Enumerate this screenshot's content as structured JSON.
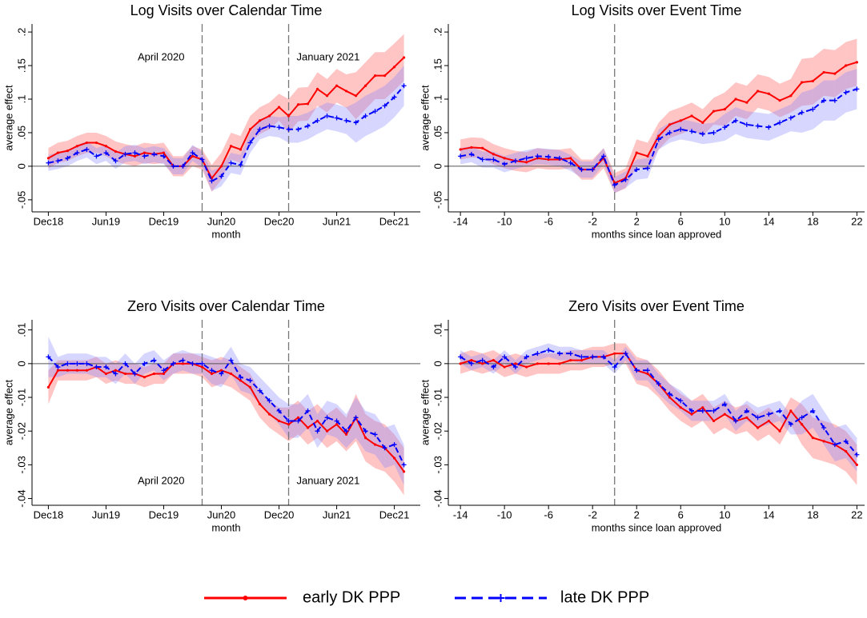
{
  "chart_data": [
    {
      "type": "line",
      "title": "Log Visits over Calendar Time",
      "xlabel": "month",
      "ylabel": "average effect",
      "categories": [
        "Dec18",
        null,
        null,
        null,
        null,
        null,
        "Jun19",
        null,
        null,
        null,
        null,
        null,
        "Dec19",
        null,
        null,
        null,
        null,
        null,
        "Jun20",
        null,
        null,
        null,
        null,
        null,
        "Dec20",
        null,
        null,
        null,
        null,
        null,
        "Jun21",
        null,
        null,
        null,
        null,
        null,
        "Dec21",
        null
      ],
      "ylim": [
        -0.068,
        0.212
      ],
      "yticks": [
        {
          "value": -0.05,
          "label": "-.05"
        },
        0,
        {
          "value": 0.05,
          "label": ".05"
        },
        {
          "value": 0.1,
          "label": ".1"
        },
        {
          "value": 0.15,
          "label": ".15"
        },
        {
          "value": 0.2,
          "label": ".2"
        }
      ],
      "yline": 0,
      "vlines": [
        {
          "x": 16,
          "label": "April 2020",
          "label_at": "top",
          "anchor": "end"
        },
        {
          "x": 25,
          "label": "January 2021",
          "label_at": "top",
          "anchor": "start"
        }
      ],
      "series": [
        {
          "name": "early DK PPP",
          "color": "#ff0000",
          "band_color": "#ff5555",
          "dash": "solid",
          "marker": "dot",
          "values": [
            0.012,
            0.02,
            0.023,
            0.03,
            0.035,
            0.035,
            0.03,
            0.022,
            0.018,
            0.015,
            0.02,
            0.018,
            0.02,
            0.0,
            0.0,
            0.015,
            0.01,
            -0.018,
            0.0,
            0.03,
            0.025,
            0.055,
            0.068,
            0.075,
            0.088,
            0.075,
            0.092,
            0.093,
            0.115,
            0.105,
            0.12,
            0.112,
            0.105,
            0.12,
            0.135,
            0.135,
            0.148,
            0.162
          ],
          "errors": [
            0.015,
            0.015,
            0.015,
            0.015,
            0.015,
            0.015,
            0.015,
            0.015,
            0.015,
            0.015,
            0.015,
            0.015,
            0.015,
            0.015,
            0.015,
            0.015,
            0.015,
            0.02,
            0.02,
            0.02,
            0.02,
            0.02,
            0.02,
            0.02,
            0.02,
            0.025,
            0.025,
            0.025,
            0.025,
            0.025,
            0.025,
            0.025,
            0.035,
            0.035,
            0.035,
            0.035,
            0.035,
            0.035
          ]
        },
        {
          "name": "late DK PPP",
          "color": "#0000ff",
          "band_color": "#8a8aff",
          "dash": "dashed",
          "marker": "plus",
          "values": [
            0.005,
            0.008,
            0.012,
            0.02,
            0.025,
            0.015,
            0.02,
            0.008,
            0.018,
            0.02,
            0.015,
            0.018,
            0.015,
            0.0,
            0.0,
            0.02,
            0.01,
            -0.022,
            -0.015,
            0.005,
            0.002,
            0.035,
            0.055,
            0.06,
            0.058,
            0.055,
            0.055,
            0.06,
            0.068,
            0.075,
            0.072,
            0.068,
            0.065,
            0.075,
            0.082,
            0.09,
            0.103,
            0.12
          ],
          "errors": [
            0.012,
            0.012,
            0.012,
            0.012,
            0.012,
            0.012,
            0.012,
            0.012,
            0.012,
            0.012,
            0.012,
            0.012,
            0.012,
            0.012,
            0.012,
            0.012,
            0.012,
            0.015,
            0.015,
            0.015,
            0.015,
            0.015,
            0.015,
            0.015,
            0.015,
            0.02,
            0.02,
            0.02,
            0.02,
            0.02,
            0.02,
            0.02,
            0.03,
            0.03,
            0.03,
            0.03,
            0.03,
            0.03
          ]
        }
      ]
    },
    {
      "type": "line",
      "title": "Log Visits over Event Time",
      "xlabel": "months since loan approved",
      "ylabel": "average effect",
      "x": [
        -14,
        -13,
        -12,
        -11,
        -10,
        -9,
        -8,
        -7,
        -6,
        -5,
        -4,
        -3,
        -2,
        -1,
        0,
        1,
        2,
        3,
        4,
        5,
        6,
        7,
        8,
        9,
        10,
        11,
        12,
        13,
        14,
        15,
        16,
        17,
        18,
        19,
        20,
        21,
        22
      ],
      "xlim": [
        -15.1,
        22.7
      ],
      "xticks": [
        -14,
        -10,
        -6,
        -2,
        2,
        6,
        10,
        14,
        18,
        22
      ],
      "ylim": [
        -0.068,
        0.212
      ],
      "yticks": [
        {
          "value": -0.05,
          "label": "-.05"
        },
        0,
        {
          "value": 0.05,
          "label": ".05"
        },
        {
          "value": 0.1,
          "label": ".1"
        },
        {
          "value": 0.15,
          "label": ".15"
        },
        {
          "value": 0.2,
          "label": ".2"
        }
      ],
      "yline": 0,
      "vlines": [
        {
          "x": 0
        }
      ],
      "series": [
        {
          "color": "#ff0000",
          "band_color": "#ff5555",
          "dash": "solid",
          "marker": "dot",
          "values": [
            0.025,
            0.028,
            0.027,
            0.018,
            0.012,
            0.008,
            0.006,
            0.012,
            0.01,
            0.01,
            0.012,
            -0.005,
            -0.005,
            0.012,
            -0.025,
            -0.018,
            0.02,
            0.015,
            0.045,
            0.062,
            0.068,
            0.075,
            0.065,
            0.082,
            0.085,
            0.1,
            0.095,
            0.112,
            0.108,
            0.098,
            0.105,
            0.125,
            0.127,
            0.14,
            0.138,
            0.15,
            0.155
          ],
          "errors": [
            0.015,
            0.015,
            0.015,
            0.015,
            0.015,
            0.015,
            0.015,
            0.015,
            0.015,
            0.015,
            0.015,
            0.015,
            0.015,
            0.015,
            0.015,
            0.015,
            0.02,
            0.02,
            0.02,
            0.02,
            0.02,
            0.02,
            0.02,
            0.02,
            0.025,
            0.025,
            0.025,
            0.025,
            0.025,
            0.025,
            0.025,
            0.035,
            0.035,
            0.035,
            0.035,
            0.035,
            0.035
          ]
        },
        {
          "color": "#0000ff",
          "band_color": "#8a8aff",
          "dash": "dashed",
          "marker": "plus",
          "values": [
            0.015,
            0.018,
            0.01,
            0.01,
            0.003,
            0.008,
            0.012,
            0.015,
            0.014,
            0.012,
            0.005,
            -0.005,
            -0.005,
            0.015,
            -0.028,
            -0.02,
            -0.005,
            -0.003,
            0.04,
            0.05,
            0.055,
            0.052,
            0.048,
            0.05,
            0.058,
            0.068,
            0.062,
            0.06,
            0.058,
            0.065,
            0.072,
            0.08,
            0.085,
            0.098,
            0.098,
            0.11,
            0.115
          ],
          "errors": [
            0.012,
            0.012,
            0.012,
            0.012,
            0.012,
            0.012,
            0.012,
            0.012,
            0.012,
            0.012,
            0.012,
            0.012,
            0.012,
            0.012,
            0.012,
            0.012,
            0.015,
            0.015,
            0.015,
            0.015,
            0.015,
            0.015,
            0.015,
            0.015,
            0.02,
            0.02,
            0.02,
            0.02,
            0.02,
            0.02,
            0.02,
            0.03,
            0.03,
            0.03,
            0.03,
            0.03,
            0.03
          ]
        }
      ]
    },
    {
      "type": "line",
      "title": "Zero Visits over Calendar Time",
      "xlabel": "month",
      "ylabel": "average effect",
      "categories": [
        "Dec18",
        null,
        null,
        null,
        null,
        null,
        "Jun19",
        null,
        null,
        null,
        null,
        null,
        "Dec19",
        null,
        null,
        null,
        null,
        null,
        "Jun20",
        null,
        null,
        null,
        null,
        null,
        "Dec20",
        null,
        null,
        null,
        null,
        null,
        "Jun21",
        null,
        null,
        null,
        null,
        null,
        "Dec21",
        null
      ],
      "ylim": [
        -0.042,
        0.013
      ],
      "yticks": [
        {
          "value": -0.04,
          "label": "-.04"
        },
        {
          "value": -0.03,
          "label": "-.03"
        },
        {
          "value": -0.02,
          "label": "-.02"
        },
        {
          "value": -0.01,
          "label": "-.01"
        },
        0,
        {
          "value": 0.01,
          "label": ".01"
        }
      ],
      "yline": 0,
      "vlines": [
        {
          "x": 16,
          "label": "April 2020",
          "label_at": "bottom",
          "anchor": "end"
        },
        {
          "x": 25,
          "label": "January 2021",
          "label_at": "bottom",
          "anchor": "start"
        }
      ],
      "series": [
        {
          "color": "#ff0000",
          "band_color": "#ff5555",
          "dash": "solid",
          "marker": "dot",
          "values": [
            -0.007,
            -0.002,
            -0.002,
            -0.002,
            -0.002,
            -0.001,
            -0.003,
            -0.002,
            -0.003,
            -0.003,
            -0.004,
            -0.003,
            -0.003,
            0,
            0,
            0,
            -0.001,
            -0.003,
            -0.002,
            -0.003,
            -0.005,
            -0.007,
            -0.012,
            -0.015,
            -0.017,
            -0.018,
            -0.016,
            -0.019,
            -0.017,
            -0.02,
            -0.018,
            -0.021,
            -0.016,
            -0.022,
            -0.024,
            -0.025,
            -0.028,
            -0.032
          ],
          "errors": [
            0.005,
            0.003,
            0.003,
            0.003,
            0.003,
            0.003,
            0.003,
            0.003,
            0.003,
            0.003,
            0.003,
            0.003,
            0.003,
            0.003,
            0.003,
            0.003,
            0.003,
            0.004,
            0.004,
            0.004,
            0.004,
            0.004,
            0.004,
            0.004,
            0.004,
            0.005,
            0.005,
            0.005,
            0.005,
            0.005,
            0.005,
            0.005,
            0.007,
            0.007,
            0.007,
            0.007,
            0.007,
            0.007
          ]
        },
        {
          "color": "#0000ff",
          "band_color": "#8a8aff",
          "dash": "dashed",
          "marker": "plus",
          "values": [
            0.002,
            -0.001,
            0,
            0,
            0,
            -0.001,
            -0.001,
            -0.003,
            0,
            -0.003,
            0,
            0.001,
            -0.002,
            0,
            0.001,
            0,
            0,
            -0.002,
            -0.003,
            0.001,
            -0.004,
            -0.005,
            -0.008,
            -0.011,
            -0.014,
            -0.017,
            -0.017,
            -0.014,
            -0.02,
            -0.016,
            -0.017,
            -0.02,
            -0.016,
            -0.02,
            -0.021,
            -0.025,
            -0.024,
            -0.03
          ],
          "errors": [
            0.006,
            0.003,
            0.003,
            0.003,
            0.003,
            0.003,
            0.003,
            0.003,
            0.003,
            0.003,
            0.003,
            0.003,
            0.003,
            0.003,
            0.003,
            0.003,
            0.003,
            0.004,
            0.004,
            0.004,
            0.004,
            0.004,
            0.004,
            0.004,
            0.004,
            0.005,
            0.005,
            0.005,
            0.005,
            0.005,
            0.005,
            0.005,
            0.006,
            0.006,
            0.006,
            0.006,
            0.006,
            0.006
          ]
        }
      ]
    },
    {
      "type": "line",
      "title": "Zero Visits over Event Time",
      "xlabel": "months since loan approved",
      "ylabel": "average effect",
      "x": [
        -14,
        -13,
        -12,
        -11,
        -10,
        -9,
        -8,
        -7,
        -6,
        -5,
        -4,
        -3,
        -2,
        -1,
        0,
        1,
        2,
        3,
        4,
        5,
        6,
        7,
        8,
        9,
        10,
        11,
        12,
        13,
        14,
        15,
        16,
        17,
        18,
        19,
        20,
        21,
        22
      ],
      "xlim": [
        -15.1,
        22.7
      ],
      "xticks": [
        -14,
        -10,
        -6,
        -2,
        2,
        6,
        10,
        14,
        18,
        22
      ],
      "ylim": [
        -0.042,
        0.013
      ],
      "yticks": [
        {
          "value": -0.04,
          "label": "-.04"
        },
        {
          "value": -0.03,
          "label": "-.03"
        },
        {
          "value": -0.02,
          "label": "-.02"
        },
        {
          "value": -0.01,
          "label": "-.01"
        },
        0,
        {
          "value": 0.01,
          "label": ".01"
        }
      ],
      "yline": 0,
      "vlines": [
        {
          "x": 0
        }
      ],
      "series": [
        {
          "color": "#ff0000",
          "band_color": "#ff5555",
          "dash": "solid",
          "marker": "dot",
          "values": [
            0,
            0.001,
            0,
            0.001,
            -0.001,
            0,
            -0.001,
            0,
            0,
            0,
            0.001,
            0.001,
            0.002,
            0.002,
            0.003,
            0.003,
            -0.002,
            -0.003,
            -0.006,
            -0.01,
            -0.013,
            -0.015,
            -0.013,
            -0.017,
            -0.015,
            -0.017,
            -0.016,
            -0.019,
            -0.017,
            -0.02,
            -0.014,
            -0.018,
            -0.022,
            -0.023,
            -0.024,
            -0.026,
            -0.03
          ],
          "errors": [
            0.003,
            0.003,
            0.003,
            0.003,
            0.003,
            0.003,
            0.003,
            0.003,
            0.003,
            0.003,
            0.003,
            0.003,
            0.003,
            0.003,
            0.003,
            0.003,
            0.004,
            0.004,
            0.004,
            0.004,
            0.004,
            0.004,
            0.004,
            0.004,
            0.004,
            0.004,
            0.004,
            0.004,
            0.004,
            0.004,
            0.004,
            0.006,
            0.006,
            0.006,
            0.006,
            0.006,
            0.006
          ]
        },
        {
          "color": "#0000ff",
          "band_color": "#8a8aff",
          "dash": "dashed",
          "marker": "plus",
          "values": [
            0.002,
            0,
            0.001,
            -0.001,
            0.002,
            -0.001,
            0.002,
            0.003,
            0.004,
            0.003,
            0.003,
            0.002,
            0.002,
            0.002,
            -0.001,
            0.003,
            -0.002,
            -0.002,
            -0.006,
            -0.009,
            -0.011,
            -0.014,
            -0.014,
            -0.014,
            -0.012,
            -0.017,
            -0.014,
            -0.016,
            -0.015,
            -0.014,
            -0.018,
            -0.016,
            -0.014,
            -0.019,
            -0.024,
            -0.023,
            -0.027
          ],
          "errors": [
            0.002,
            0.002,
            0.002,
            0.002,
            0.002,
            0.002,
            0.002,
            0.002,
            0.002,
            0.002,
            0.002,
            0.002,
            0.002,
            0.002,
            0.002,
            0.002,
            0.003,
            0.003,
            0.003,
            0.003,
            0.003,
            0.003,
            0.003,
            0.003,
            0.003,
            0.003,
            0.003,
            0.003,
            0.003,
            0.003,
            0.003,
            0.005,
            0.005,
            0.005,
            0.005,
            0.005,
            0.005
          ]
        }
      ]
    }
  ]
}
